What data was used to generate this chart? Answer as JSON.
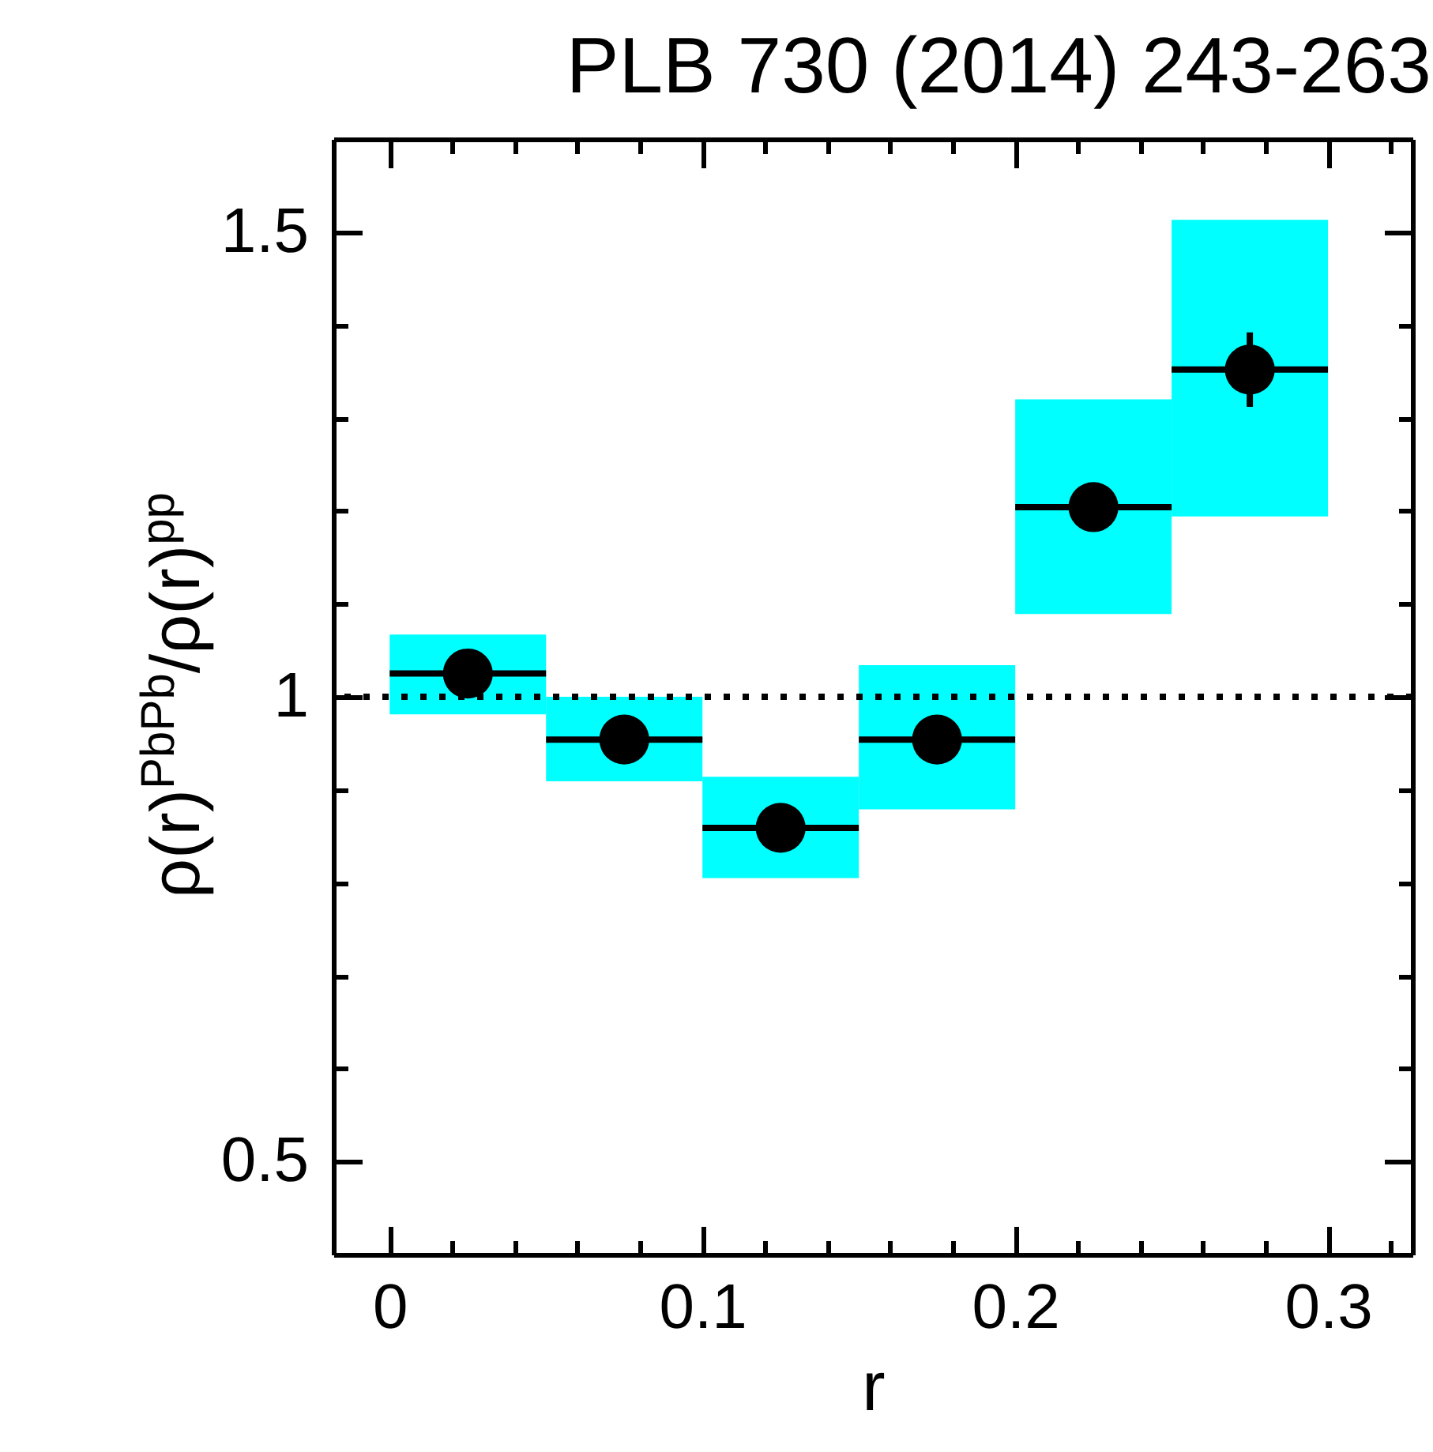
{
  "chart_data": {
    "type": "scatter",
    "title": "PLB 730 (2014) 243-263",
    "xlabel": "r",
    "ylabel": "ρ(r)$^{PbPb}$/ρ(r)$^{pp}$",
    "xlim": [
      -0.018,
      0.327
    ],
    "ylim": [
      0.4,
      1.6
    ],
    "xticks": [
      0,
      {
        "value": 0.02,
        "label": null
      },
      {
        "value": 0.04,
        "label": null
      },
      {
        "value": 0.06,
        "label": null
      },
      {
        "value": 0.08,
        "label": null
      },
      0.1,
      {
        "value": 0.12,
        "label": null
      },
      {
        "value": 0.14,
        "label": null
      },
      {
        "value": 0.16,
        "label": null
      },
      {
        "value": 0.18,
        "label": null
      },
      0.2,
      {
        "value": 0.22,
        "label": null
      },
      {
        "value": 0.24,
        "label": null
      },
      {
        "value": 0.26,
        "label": null
      },
      {
        "value": 0.28,
        "label": null
      },
      0.3,
      {
        "value": 0.32,
        "label": null
      }
    ],
    "yticks": [
      0.5,
      {
        "value": 0.6,
        "label": null
      },
      {
        "value": 0.7,
        "label": null
      },
      {
        "value": 0.8,
        "label": null
      },
      {
        "value": 0.9,
        "label": null
      },
      1,
      {
        "value": 1.1,
        "label": null
      },
      {
        "value": 1.2,
        "label": null
      },
      {
        "value": 1.3,
        "label": null
      },
      {
        "value": 1.4,
        "label": null
      },
      1.5
    ],
    "marker": "circle",
    "ref_lines": [
      {
        "axis": "y",
        "value": 1,
        "color": "#000000",
        "line_style": "dotted"
      }
    ],
    "series": [
      {
        "type": "bar",
        "color": "#00ffff",
        "x": [
          0.025,
          0.075,
          0.125,
          0.175,
          0.225,
          0.275
        ],
        "base": [
          0.981,
          0.909,
          0.805,
          0.879,
          1.089,
          1.194
        ],
        "values": [
          0.086,
          0.091,
          0.109,
          0.155,
          0.231,
          0.319
        ]
      },
      {
        "color": "#000000",
        "x": [
          0.025,
          0.075,
          0.125,
          0.175,
          0.225,
          0.275
        ],
        "values": [
          1.025,
          0.954,
          0.859,
          0.954,
          1.204,
          1.352
        ],
        "xerrors": [
          0.025,
          0.025,
          0.025,
          0.025,
          0.025,
          0.025
        ],
        "errors": [
          null,
          null,
          null,
          null,
          null,
          [
            1.312,
            1.392
          ]
        ]
      }
    ]
  }
}
